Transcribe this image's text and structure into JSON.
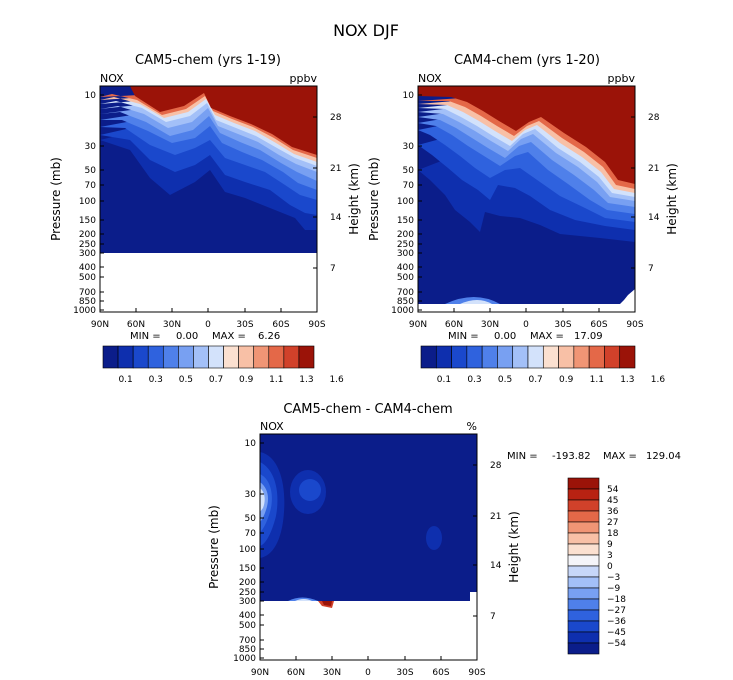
{
  "title": "NOX DJF",
  "pressure_ticks": [
    "10",
    "30",
    "50",
    "70",
    "100",
    "150",
    "200",
    "250",
    "300",
    "400",
    "500",
    "700",
    "850",
    "1000"
  ],
  "height_ticks": [
    "28",
    "21",
    "14",
    "7"
  ],
  "lat_ticks": [
    "90N",
    "60N",
    "30N",
    "0",
    "30S",
    "60S",
    "90S"
  ],
  "cbar_top": {
    "colors": [
      "#0b1d8a",
      "#0e2fae",
      "#1a48cc",
      "#2f62de",
      "#4f80ea",
      "#78a0f2",
      "#a3c0f8",
      "#d3e2fb",
      "#fbe0d0",
      "#f8c0a6",
      "#f09575",
      "#e46848",
      "#d1412a",
      "#9b1308"
    ],
    "labels": [
      "0.1",
      "0.3",
      "0.5",
      "0.7",
      "0.9",
      "1.1",
      "1.3",
      "1.6"
    ]
  },
  "cbar_diff": {
    "colors": [
      "#9b1308",
      "#b82212",
      "#d1412a",
      "#e46848",
      "#f09575",
      "#f8c0a6",
      "#fbe0d0",
      "#f4f4f8",
      "#c7d7f8",
      "#a3c0f8",
      "#78a0f2",
      "#4f80ea",
      "#2f62de",
      "#1a48cc",
      "#0e2fae",
      "#0b1d8a"
    ],
    "labels": [
      "54",
      "45",
      "36",
      "27",
      "18",
      "9",
      "3",
      "0",
      "−3",
      "−9",
      "−18",
      "−27",
      "−36",
      "−45",
      "−54"
    ]
  },
  "chart_data": [
    {
      "type": "heatmap",
      "title": "CAM5-chem (yrs 1-19)",
      "variable": "NOX",
      "units": "ppbv",
      "xlabel": "",
      "ylabel": "Pressure (mb)",
      "y2label": "Height (km)",
      "stats": {
        "min_label": "MIN =",
        "min": "0.00",
        "max_label": "MAX =",
        "max": "6.26"
      }
    },
    {
      "type": "heatmap",
      "title": "CAM4-chem (yrs 1-20)",
      "variable": "NOX",
      "units": "ppbv",
      "xlabel": "",
      "ylabel": "Pressure (mb)",
      "y2label": "Height (km)",
      "stats": {
        "min_label": "MIN =",
        "min": "0.00",
        "max_label": "MAX =",
        "max": "17.09"
      }
    },
    {
      "type": "heatmap",
      "title": "CAM5-chem - CAM4-chem",
      "variable": "NOX",
      "units": "%",
      "xlabel": "",
      "ylabel": "Pressure (mb)",
      "y2label": "Height (km)",
      "stats": {
        "min_label": "MIN =",
        "min": "-193.82",
        "max_label": "MAX =",
        "max": "129.04"
      }
    }
  ]
}
